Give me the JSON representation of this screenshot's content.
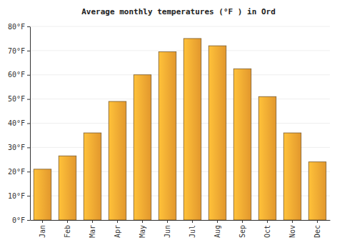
{
  "chart_data": {
    "type": "bar",
    "title": "Average monthly temperatures (°F ) in Ord",
    "categories": [
      "Jan",
      "Feb",
      "Mar",
      "Apr",
      "May",
      "Jun",
      "Jul",
      "Aug",
      "Sep",
      "Oct",
      "Nov",
      "Dec"
    ],
    "values": [
      21,
      26.5,
      36,
      49,
      60,
      69.5,
      75,
      72,
      62.5,
      51,
      36,
      24
    ],
    "color": "#fba832",
    "ylim": [
      0,
      80
    ],
    "yticks": [
      {
        "value": 0,
        "label": "0°F"
      },
      {
        "value": 10,
        "label": "10°F"
      },
      {
        "value": 20,
        "label": "20°F"
      },
      {
        "value": 30,
        "label": "30°F"
      },
      {
        "value": 40,
        "label": "40°F"
      },
      {
        "value": 50,
        "label": "50°F"
      },
      {
        "value": 60,
        "label": "60°F"
      },
      {
        "value": 70,
        "label": "70°F"
      },
      {
        "value": 80,
        "label": "80°F"
      }
    ],
    "grid": true
  }
}
